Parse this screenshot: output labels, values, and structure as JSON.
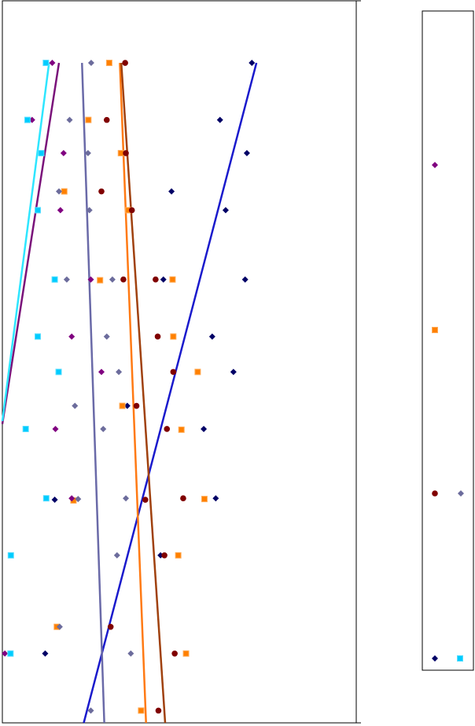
{
  "chart_data": {
    "type": "scatter",
    "title": "",
    "xlabel": "",
    "ylabel": "",
    "xlim": [
      0,
      100
    ],
    "ylim": [
      0,
      100
    ],
    "grid": false,
    "legend_position": "right",
    "legend_labels_visible": false,
    "series": [
      {
        "marker": "diamond",
        "color": "#000066",
        "points": [
          [
            70.5,
            91.4
          ],
          [
            61.5,
            83.5
          ],
          [
            69.1,
            78.9
          ],
          [
            47.8,
            73.6
          ],
          [
            63.1,
            71.0
          ],
          [
            68.6,
            61.4
          ],
          [
            45.5,
            61.4
          ],
          [
            59.3,
            53.5
          ],
          [
            65.3,
            48.6
          ],
          [
            35.3,
            43.9
          ],
          [
            56.9,
            40.7
          ],
          [
            60.3,
            31.1
          ],
          [
            14.8,
            30.9
          ],
          [
            44.7,
            23.2
          ],
          [
            12.1,
            9.6
          ]
        ],
        "trend": [
          [
            23.0,
            0
          ],
          [
            71.8,
            91.4
          ]
        ]
      },
      {
        "marker": "square",
        "color": "#ff8000",
        "points": [
          [
            30.2,
            91.4
          ],
          [
            24.3,
            83.5
          ],
          [
            33.5,
            78.9
          ],
          [
            17.5,
            73.6
          ],
          [
            35.6,
            71.0
          ],
          [
            48.1,
            61.4
          ],
          [
            27.6,
            61.3
          ],
          [
            48.3,
            53.5
          ],
          [
            55.2,
            48.6
          ],
          [
            33.9,
            43.9
          ],
          [
            50.6,
            40.6
          ],
          [
            57.1,
            31.0
          ],
          [
            20.1,
            30.8
          ],
          [
            49.7,
            23.2
          ],
          [
            15.4,
            13.3
          ],
          [
            51.9,
            9.6
          ],
          [
            39.2,
            1.7
          ]
        ],
        "trend": [
          [
            40.6,
            0
          ],
          [
            33.2,
            91.4
          ]
        ]
      },
      {
        "marker": "circle",
        "color": "#800000",
        "points": [
          [
            34.7,
            91.4
          ],
          [
            29.5,
            83.5
          ],
          [
            34.9,
            78.9
          ],
          [
            28.0,
            73.6
          ],
          [
            36.6,
            71.0
          ],
          [
            43.3,
            61.4
          ],
          [
            34.2,
            61.4
          ],
          [
            43.9,
            53.5
          ],
          [
            48.3,
            48.6
          ],
          [
            37.9,
            43.9
          ],
          [
            46.5,
            40.7
          ],
          [
            51.1,
            31.1
          ],
          [
            40.4,
            30.9
          ],
          [
            45.8,
            23.2
          ],
          [
            30.6,
            13.3
          ],
          [
            48.7,
            9.6
          ],
          [
            44.1,
            1.7
          ]
        ],
        "trend": [
          [
            46.0,
            0
          ],
          [
            33.6,
            91.4
          ]
        ]
      },
      {
        "marker": "diamond",
        "color": "#6c6c9c",
        "points": [
          [
            25.1,
            91.4
          ],
          [
            19.0,
            83.5
          ],
          [
            24.2,
            78.9
          ],
          [
            16.0,
            73.6
          ],
          [
            24.6,
            71.0
          ],
          [
            18.2,
            61.4
          ],
          [
            31.1,
            61.4
          ],
          [
            29.5,
            53.5
          ],
          [
            32.9,
            48.6
          ],
          [
            20.5,
            43.9
          ],
          [
            28.5,
            40.7
          ],
          [
            21.4,
            31.0
          ],
          [
            34.9,
            31.1
          ],
          [
            32.4,
            23.2
          ],
          [
            16.2,
            13.3
          ],
          [
            36.3,
            9.6
          ],
          [
            25.0,
            1.7
          ]
        ],
        "trend": [
          [
            28.8,
            0
          ],
          [
            22.5,
            91.4
          ]
        ]
      },
      {
        "marker": "diamond",
        "color": "#800080",
        "points": [
          [
            14.1,
            91.4
          ],
          [
            8.4,
            83.5
          ],
          [
            17.3,
            78.9
          ],
          [
            16.4,
            71.0
          ],
          [
            25.0,
            61.4
          ],
          [
            19.6,
            53.5
          ],
          [
            28.0,
            48.6
          ],
          [
            15.0,
            40.7
          ],
          [
            19.6,
            31.1
          ],
          [
            0.7,
            9.6
          ]
        ],
        "trend": [
          [
            0,
            41.4
          ],
          [
            16.0,
            91.4
          ]
        ]
      },
      {
        "marker": "square",
        "color": "#00ccff",
        "points": [
          [
            12.3,
            91.4
          ],
          [
            7.1,
            83.5
          ],
          [
            11.0,
            78.9
          ],
          [
            10.0,
            71.0
          ],
          [
            14.8,
            61.4
          ],
          [
            10.0,
            53.5
          ],
          [
            15.9,
            48.6
          ],
          [
            6.6,
            40.7
          ],
          [
            12.4,
            31.1
          ],
          [
            2.4,
            23.2
          ],
          [
            2.3,
            9.6
          ]
        ],
        "trend": [
          [
            0,
            41.8
          ],
          [
            13.2,
            91.4
          ]
        ]
      }
    ]
  }
}
